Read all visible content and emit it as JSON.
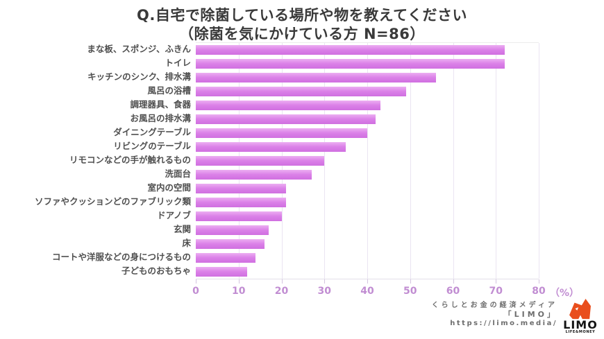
{
  "title": {
    "line1": "Q.自宅で除菌している場所や物を教えてください",
    "line2": "（除菌を気にかけている方 N=86）"
  },
  "chart_data": {
    "type": "bar",
    "orientation": "horizontal",
    "title": "Q.自宅で除菌している場所や物を教えてください（除菌を気にかけている方 N=86）",
    "categories": [
      "まな板、スポンジ、ふきん",
      "トイレ",
      "キッチンのシンク、排水溝",
      "風呂の浴槽",
      "調理器具、食器",
      "お風呂の排水溝",
      "ダイニングテーブル",
      "リビングのテーブル",
      "リモコンなどの手が触れるもの",
      "洗面台",
      "室内の空間",
      "ソファやクッションどのファブリック類",
      "ドアノブ",
      "玄関",
      "床",
      "コートや洋服などの身につけるもの",
      "子どものおもちゃ"
    ],
    "values": [
      72,
      72,
      56,
      49,
      43,
      42,
      40,
      35,
      30,
      27,
      21,
      21,
      20,
      17,
      16,
      14,
      12
    ],
    "unit": "%",
    "xlim": [
      0,
      80
    ],
    "x_ticks": [
      0,
      10,
      20,
      30,
      40,
      50,
      60,
      70,
      80
    ],
    "x_axis_suffix": "（%）",
    "grid": true,
    "legend": "none",
    "bar_color": "#d97ee7",
    "grid_color": "#eae4f2",
    "tick_label_color": "#c18dd2"
  },
  "footer": {
    "line1": "くらしとお金の経済メディア",
    "line2": "「LIMO」",
    "line3": "https://limo.media/",
    "logo": {
      "name": "LIMO",
      "tagline": "LIFE&MONEY",
      "icon": "fox-icon",
      "color": "#e94e1d"
    }
  }
}
